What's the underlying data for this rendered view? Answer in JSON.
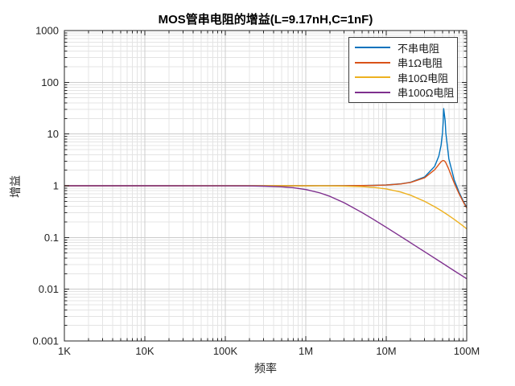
{
  "chart_data": {
    "type": "line",
    "title": "MOS管串电阻的增益(L=9.17nH,C=1nF)",
    "xlabel": "频率",
    "ylabel": "增益",
    "x_scale": "log",
    "y_scale": "log",
    "xlim": [
      1000,
      100000000
    ],
    "ylim": [
      0.001,
      1000
    ],
    "grid": {
      "major": true,
      "minor": true
    },
    "legend_position": "top-right",
    "axis_color": "#262626",
    "grid_major_color": "#cccccc",
    "grid_minor_color": "#e4e4e4",
    "x_ticks": [
      {
        "value": 1000,
        "label": "1K"
      },
      {
        "value": 10000,
        "label": "10K"
      },
      {
        "value": 100000,
        "label": "100K"
      },
      {
        "value": 1000000,
        "label": "1M"
      },
      {
        "value": 10000000,
        "label": "10M"
      },
      {
        "value": 100000000,
        "label": "100M"
      }
    ],
    "y_ticks": [
      {
        "value": 1000,
        "label": "1000"
      },
      {
        "value": 100,
        "label": "100"
      },
      {
        "value": 10,
        "label": "10"
      },
      {
        "value": 1,
        "label": "1"
      },
      {
        "value": 0.1,
        "label": "0.1"
      },
      {
        "value": 0.01,
        "label": "0.01"
      },
      {
        "value": 0.001,
        "label": "0.001"
      }
    ],
    "series": [
      {
        "name": "不串电阻",
        "color": "#0072BD",
        "points": [
          [
            1000,
            1
          ],
          [
            10000,
            1
          ],
          [
            100000,
            1
          ],
          [
            200000,
            1
          ],
          [
            300000,
            1
          ],
          [
            500000,
            1.0001
          ],
          [
            700000,
            1.0002
          ],
          [
            1000000,
            1.0004
          ],
          [
            1500000,
            1.0008
          ],
          [
            2000000,
            1.0014
          ],
          [
            3000000,
            1.0033
          ],
          [
            5000000,
            1.0091
          ],
          [
            7000000,
            1.0181
          ],
          [
            10000000,
            1.0376
          ],
          [
            15000000,
            1.0887
          ],
          [
            20000000,
            1.1693
          ],
          [
            30000000,
            1.4833
          ],
          [
            40000000,
            2.3765
          ],
          [
            45000000,
            3.7469
          ],
          [
            48000000,
            6.028
          ],
          [
            50000000,
            10.543
          ],
          [
            51000000,
            17.135
          ],
          [
            51700000,
            30.93
          ],
          [
            54000000,
            17.96
          ],
          [
            55000000,
            10.51
          ],
          [
            60000000,
            3.297
          ],
          [
            70000000,
            1.2921
          ],
          [
            80000000,
            0.7593
          ],
          [
            90000000,
            0.5175
          ],
          [
            100000000,
            0.3817
          ]
        ]
      },
      {
        "name": "串1Ω电阻",
        "color": "#D95319",
        "points": [
          [
            1000,
            1
          ],
          [
            10000,
            1
          ],
          [
            100000,
            1
          ],
          [
            200000,
            1
          ],
          [
            300000,
            1
          ],
          [
            500000,
            1.0001
          ],
          [
            700000,
            1.0002
          ],
          [
            1000000,
            1.0003
          ],
          [
            1500000,
            1.0008
          ],
          [
            2000000,
            1.0014
          ],
          [
            3000000,
            1.0031
          ],
          [
            5000000,
            1.0086
          ],
          [
            7000000,
            1.017
          ],
          [
            10000000,
            1.0354
          ],
          [
            15000000,
            1.083
          ],
          [
            20000000,
            1.157
          ],
          [
            30000000,
            1.4286
          ],
          [
            40000000,
            2.0404
          ],
          [
            45000000,
            2.5719
          ],
          [
            48000000,
            2.9053
          ],
          [
            50000000,
            3.0469
          ],
          [
            51000000,
            3.0702
          ],
          [
            51700000,
            3.063
          ],
          [
            52560000,
            3.0279
          ],
          [
            54000000,
            2.9084
          ],
          [
            55000000,
            2.7899
          ],
          [
            60000000,
            2.067
          ],
          [
            70000000,
            1.1233
          ],
          [
            80000000,
            0.7094
          ],
          [
            90000000,
            0.4967
          ],
          [
            100000000,
            0.3711
          ]
        ]
      },
      {
        "name": "串10Ω电阻",
        "color": "#EDB120",
        "points": [
          [
            1000,
            1
          ],
          [
            10000,
            1
          ],
          [
            100000,
            1
          ],
          [
            200000,
            0.9999
          ],
          [
            300000,
            0.9998
          ],
          [
            500000,
            0.9995
          ],
          [
            700000,
            0.999
          ],
          [
            1000000,
            0.998
          ],
          [
            1500000,
            0.9964
          ],
          [
            2000000,
            0.9936
          ],
          [
            3000000,
            0.9858
          ],
          [
            5000000,
            0.962
          ],
          [
            7000000,
            0.9292
          ],
          [
            10000000,
            0.8692
          ],
          [
            15000000,
            0.7599
          ],
          [
            20000000,
            0.6579
          ],
          [
            30000000,
            0.4995
          ],
          [
            40000000,
            0.3924
          ],
          [
            45000000,
            0.3521
          ],
          [
            48000000,
            0.3311
          ],
          [
            50000000,
            0.3182
          ],
          [
            51000000,
            0.312
          ],
          [
            51700000,
            0.3078
          ],
          [
            52560000,
            0.3028
          ],
          [
            54000000,
            0.2947
          ],
          [
            55000000,
            0.2893
          ],
          [
            60000000,
            0.2644
          ],
          [
            70000000,
            0.2239
          ],
          [
            80000000,
            0.1924
          ],
          [
            90000000,
            0.1673
          ],
          [
            100000000,
            0.1469
          ]
        ]
      },
      {
        "name": "串100Ω电阻",
        "color": "#7E2F8E",
        "points": [
          [
            1000,
            1
          ],
          [
            10000,
            1
          ],
          [
            100000,
            0.998
          ],
          [
            200000,
            0.9922
          ],
          [
            300000,
            0.9827
          ],
          [
            500000,
            0.954
          ],
          [
            700000,
            0.9154
          ],
          [
            1000000,
            0.847
          ],
          [
            1500000,
            0.728
          ],
          [
            2000000,
            0.6231
          ],
          [
            3000000,
            0.469
          ],
          [
            5000000,
            0.3036
          ],
          [
            7000000,
            0.2219
          ],
          [
            10000000,
            0.1573
          ],
          [
            15000000,
            0.1056
          ],
          [
            20000000,
            0.0794
          ],
          [
            30000000,
            0.053
          ],
          [
            40000000,
            0.0398
          ],
          [
            45000000,
            0.0354
          ],
          [
            48000000,
            0.0332
          ],
          [
            50000000,
            0.0318
          ],
          [
            51000000,
            0.0312
          ],
          [
            51700000,
            0.0308
          ],
          [
            52560000,
            0.0303
          ],
          [
            54000000,
            0.0295
          ],
          [
            55000000,
            0.0289
          ],
          [
            60000000,
            0.0265
          ],
          [
            70000000,
            0.0227
          ],
          [
            80000000,
            0.0199
          ],
          [
            90000000,
            0.0177
          ],
          [
            100000000,
            0.0159
          ]
        ]
      }
    ]
  }
}
